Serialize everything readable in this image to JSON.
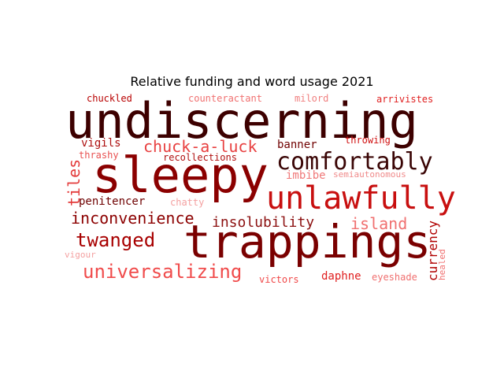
{
  "title": "Relative funding and word usage 2021",
  "words": [
    {
      "text": "undiscerning",
      "color": "#3d0000"
    },
    {
      "text": "sleepy",
      "color": "#8b0000"
    },
    {
      "text": "trappings",
      "color": "#7a0000"
    },
    {
      "text": "unlawfully",
      "color": "#c80f0f"
    },
    {
      "text": "comfortably",
      "color": "#3a0505"
    },
    {
      "text": "chuck-a-luck",
      "color": "#e84040"
    },
    {
      "text": "twanged",
      "color": "#a80000"
    },
    {
      "text": "universalizing",
      "color": "#f04b4b"
    },
    {
      "text": "inconvenience",
      "color": "#8c0000"
    },
    {
      "text": "insolubility",
      "color": "#8c1010"
    },
    {
      "text": "island",
      "color": "#f07070"
    },
    {
      "text": "tiles",
      "color": "#e33a3a"
    },
    {
      "text": "currency",
      "color": "#b00000"
    },
    {
      "text": "penitencer",
      "color": "#6e0000"
    },
    {
      "text": "banner",
      "color": "#700000"
    },
    {
      "text": "imbibe",
      "color": "#f07878"
    },
    {
      "text": "vigils",
      "color": "#ad1010"
    },
    {
      "text": "daphne",
      "color": "#e02020"
    },
    {
      "text": "throwing",
      "color": "#d01010"
    },
    {
      "text": "chuckled",
      "color": "#b80000"
    },
    {
      "text": "counteractant",
      "color": "#f07070"
    },
    {
      "text": "milord",
      "color": "#f08080"
    },
    {
      "text": "arrivistes",
      "color": "#e02020"
    },
    {
      "text": "thrashy",
      "color": "#e85050"
    },
    {
      "text": "recollections",
      "color": "#b01010"
    },
    {
      "text": "semiautonomous",
      "color": "#f08a8a"
    },
    {
      "text": "chatty",
      "color": "#f4a0a0"
    },
    {
      "text": "victors",
      "color": "#f04848"
    },
    {
      "text": "eyeshade",
      "color": "#f07070"
    },
    {
      "text": "healed",
      "color": "#f07070"
    },
    {
      "text": "vigour",
      "color": "#f4a0a0"
    }
  ]
}
